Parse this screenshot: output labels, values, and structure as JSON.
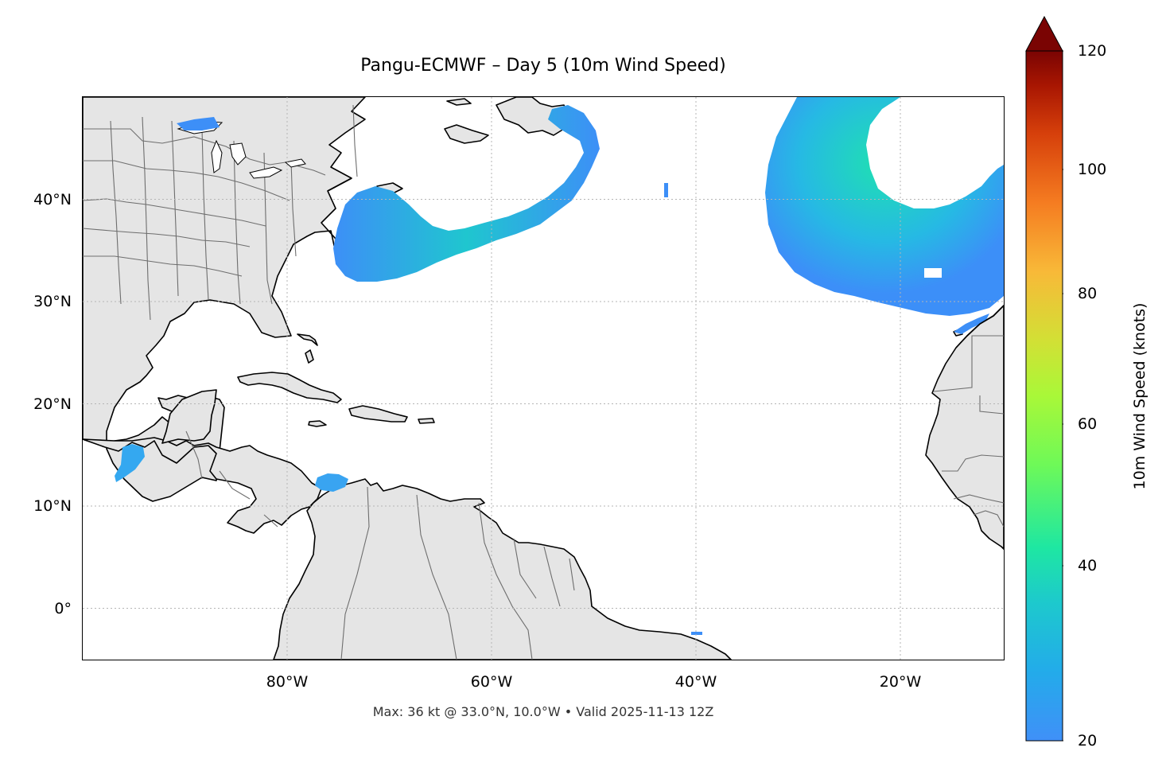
{
  "title": "Pangu-ECMWF – Day 5 (10m Wind Speed)",
  "footer": "Max: 36 kt @ 33.0°N, 10.0°W • Valid 2025-11-13 12Z",
  "map": {
    "lon_range": [
      -100,
      -10
    ],
    "lat_range": [
      -5,
      50
    ],
    "lat_ticks": [
      {
        "value": 40,
        "label": "40°N"
      },
      {
        "value": 30,
        "label": "30°N"
      },
      {
        "value": 20,
        "label": "20°N"
      },
      {
        "value": 10,
        "label": "10°N"
      },
      {
        "value": 0,
        "label": "0°"
      }
    ],
    "lon_ticks": [
      {
        "value": -80,
        "label": "80°W"
      },
      {
        "value": -60,
        "label": "60°W"
      },
      {
        "value": -40,
        "label": "40°W"
      },
      {
        "value": -20,
        "label": "20°W"
      }
    ],
    "gridlines": "dotted",
    "land_color": "#e5e5e5",
    "coastline_color": "#000000",
    "border_color": "#6e6e6e"
  },
  "colorbar": {
    "label": "10m Wind Speed (knots)",
    "min": 20,
    "max": 120,
    "extend": "max",
    "ticks": [
      {
        "value": 120,
        "label": "120"
      },
      {
        "value": 100,
        "label": "100"
      },
      {
        "value": 80,
        "label": "80"
      },
      {
        "value": 60,
        "label": "60"
      },
      {
        "value": 40,
        "label": "40"
      },
      {
        "value": 20,
        "label": "20"
      }
    ],
    "colormap": "turbo",
    "colors": [
      "#4090f8",
      "#1fb8e6",
      "#1de7a2",
      "#a2f93c",
      "#dfd835",
      "#fba936",
      "#f06a1c",
      "#d23506",
      "#a51301",
      "#7a0403"
    ]
  },
  "wind": {
    "max_kt": 36,
    "max_lat": 33.0,
    "max_lon": -10.0
  }
}
